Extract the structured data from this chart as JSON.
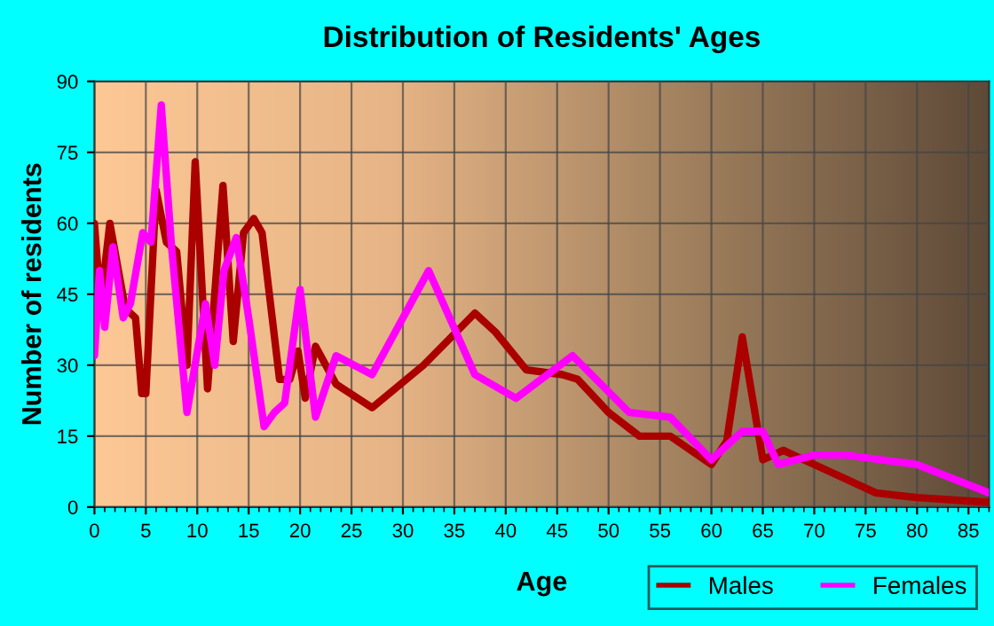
{
  "chart_data": {
    "type": "line",
    "title": "Distribution of Residents' Ages",
    "xlabel": "Age",
    "ylabel": "Number of residents",
    "xlim": [
      0,
      87
    ],
    "xticks": [
      0,
      5,
      10,
      15,
      20,
      25,
      30,
      35,
      40,
      45,
      50,
      55,
      60,
      65,
      70,
      75,
      80,
      85
    ],
    "ylim": [
      0,
      90
    ],
    "yticks": [
      0,
      15,
      30,
      45,
      60,
      75,
      90
    ],
    "grid": true,
    "legend": "bottom right",
    "marker": "none",
    "line_style": "solid",
    "series": [
      {
        "name": "Males",
        "color": "#aa0000",
        "x": [
          0,
          0.6,
          1.5,
          3,
          4,
          4.6,
          5,
          6,
          7,
          8,
          9,
          9.8,
          11,
          12.5,
          13.5,
          14.5,
          15.5,
          16.3,
          18,
          19,
          19.8,
          20.5,
          21.5,
          23.5,
          27,
          32,
          37,
          39,
          42,
          45.5,
          47,
          50,
          53,
          56,
          60,
          61.5,
          63,
          65,
          67,
          68,
          72,
          76,
          80,
          87
        ],
        "values": [
          60,
          43,
          60,
          42,
          40,
          24,
          24,
          67,
          56,
          54,
          30,
          73,
          25,
          68,
          35,
          58,
          61,
          58,
          27,
          27,
          33,
          23,
          34,
          26,
          21,
          30,
          41,
          37,
          29,
          28,
          27,
          20,
          15,
          15,
          9,
          14,
          36,
          10,
          12,
          11,
          7,
          3,
          2,
          1
        ]
      },
      {
        "name": "Females",
        "color": "#ff00ff",
        "x": [
          0,
          0.5,
          1,
          1.8,
          2.8,
          3.5,
          4.7,
          5.5,
          6.5,
          7.5,
          9,
          10.8,
          11.7,
          12.6,
          13.8,
          15,
          16.5,
          17.5,
          18.5,
          20,
          21.5,
          23.5,
          27,
          32.5,
          37,
          41,
          46.5,
          52,
          56,
          60,
          63,
          65,
          66.5,
          70,
          73,
          80,
          87
        ],
        "values": [
          32,
          50,
          38,
          55,
          40,
          43,
          58,
          56,
          85,
          55,
          20,
          43,
          30,
          50,
          57,
          40,
          17,
          20,
          22,
          46,
          19,
          32,
          28,
          50,
          28,
          23,
          32,
          20,
          19,
          10,
          16,
          16,
          9,
          11,
          11,
          9,
          3
        ]
      }
    ]
  }
}
